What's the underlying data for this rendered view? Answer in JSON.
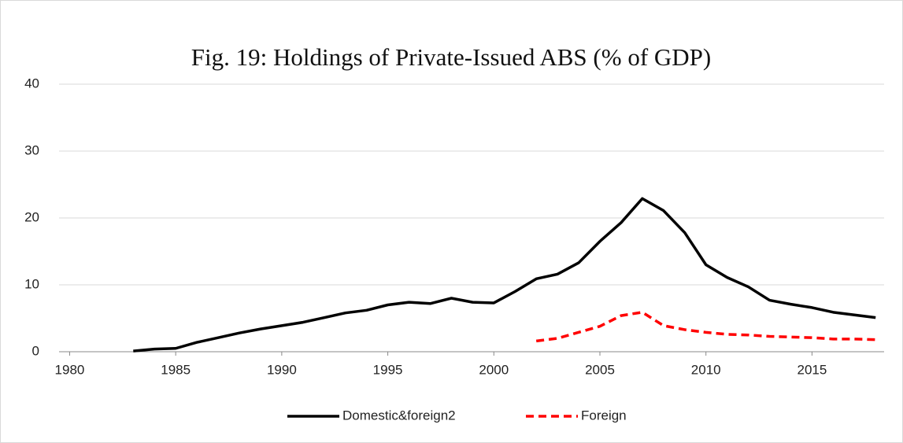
{
  "chart_data": {
    "type": "line",
    "title": "Fig. 19: Holdings of Private-Issued ABS (% of GDP)",
    "x": [
      1983,
      1984,
      1985,
      1986,
      1987,
      1988,
      1989,
      1990,
      1991,
      1992,
      1993,
      1994,
      1995,
      1996,
      1997,
      1998,
      1999,
      2000,
      2001,
      2002,
      2003,
      2004,
      2005,
      2006,
      2007,
      2008,
      2009,
      2010,
      2011,
      2012,
      2013,
      2014,
      2015,
      2016,
      2017,
      2018
    ],
    "series": [
      {
        "name": "Domestic&foreign2",
        "color": "#000000",
        "dash": false,
        "values": [
          0.1,
          0.4,
          0.5,
          1.4,
          2.1,
          2.8,
          3.4,
          3.9,
          4.4,
          5.1,
          5.8,
          6.2,
          7.0,
          7.4,
          7.2,
          8.0,
          7.4,
          7.3,
          9.0,
          10.9,
          11.6,
          13.3,
          16.5,
          19.3,
          22.9,
          21.1,
          17.8,
          13.0,
          11.1,
          9.7,
          7.7,
          7.1,
          6.6,
          5.9,
          5.5,
          5.1
        ]
      },
      {
        "name": "Foreign",
        "color": "#ff0000",
        "dash": true,
        "values": [
          null,
          null,
          null,
          null,
          null,
          null,
          null,
          null,
          null,
          null,
          null,
          null,
          null,
          null,
          null,
          null,
          null,
          null,
          null,
          1.6,
          2.0,
          2.9,
          3.8,
          5.4,
          5.9,
          3.9,
          3.3,
          2.9,
          2.6,
          2.5,
          2.3,
          2.2,
          2.1,
          1.9,
          1.9,
          1.8
        ]
      }
    ],
    "xlim": [
      1979.5,
      2018.4
    ],
    "xticks": [
      1980,
      1985,
      1990,
      1995,
      2000,
      2005,
      2010,
      2015
    ],
    "ylim": [
      0,
      40
    ],
    "yticks": [
      0,
      10,
      20,
      30,
      40
    ],
    "grid": true,
    "legend": "bottom"
  }
}
